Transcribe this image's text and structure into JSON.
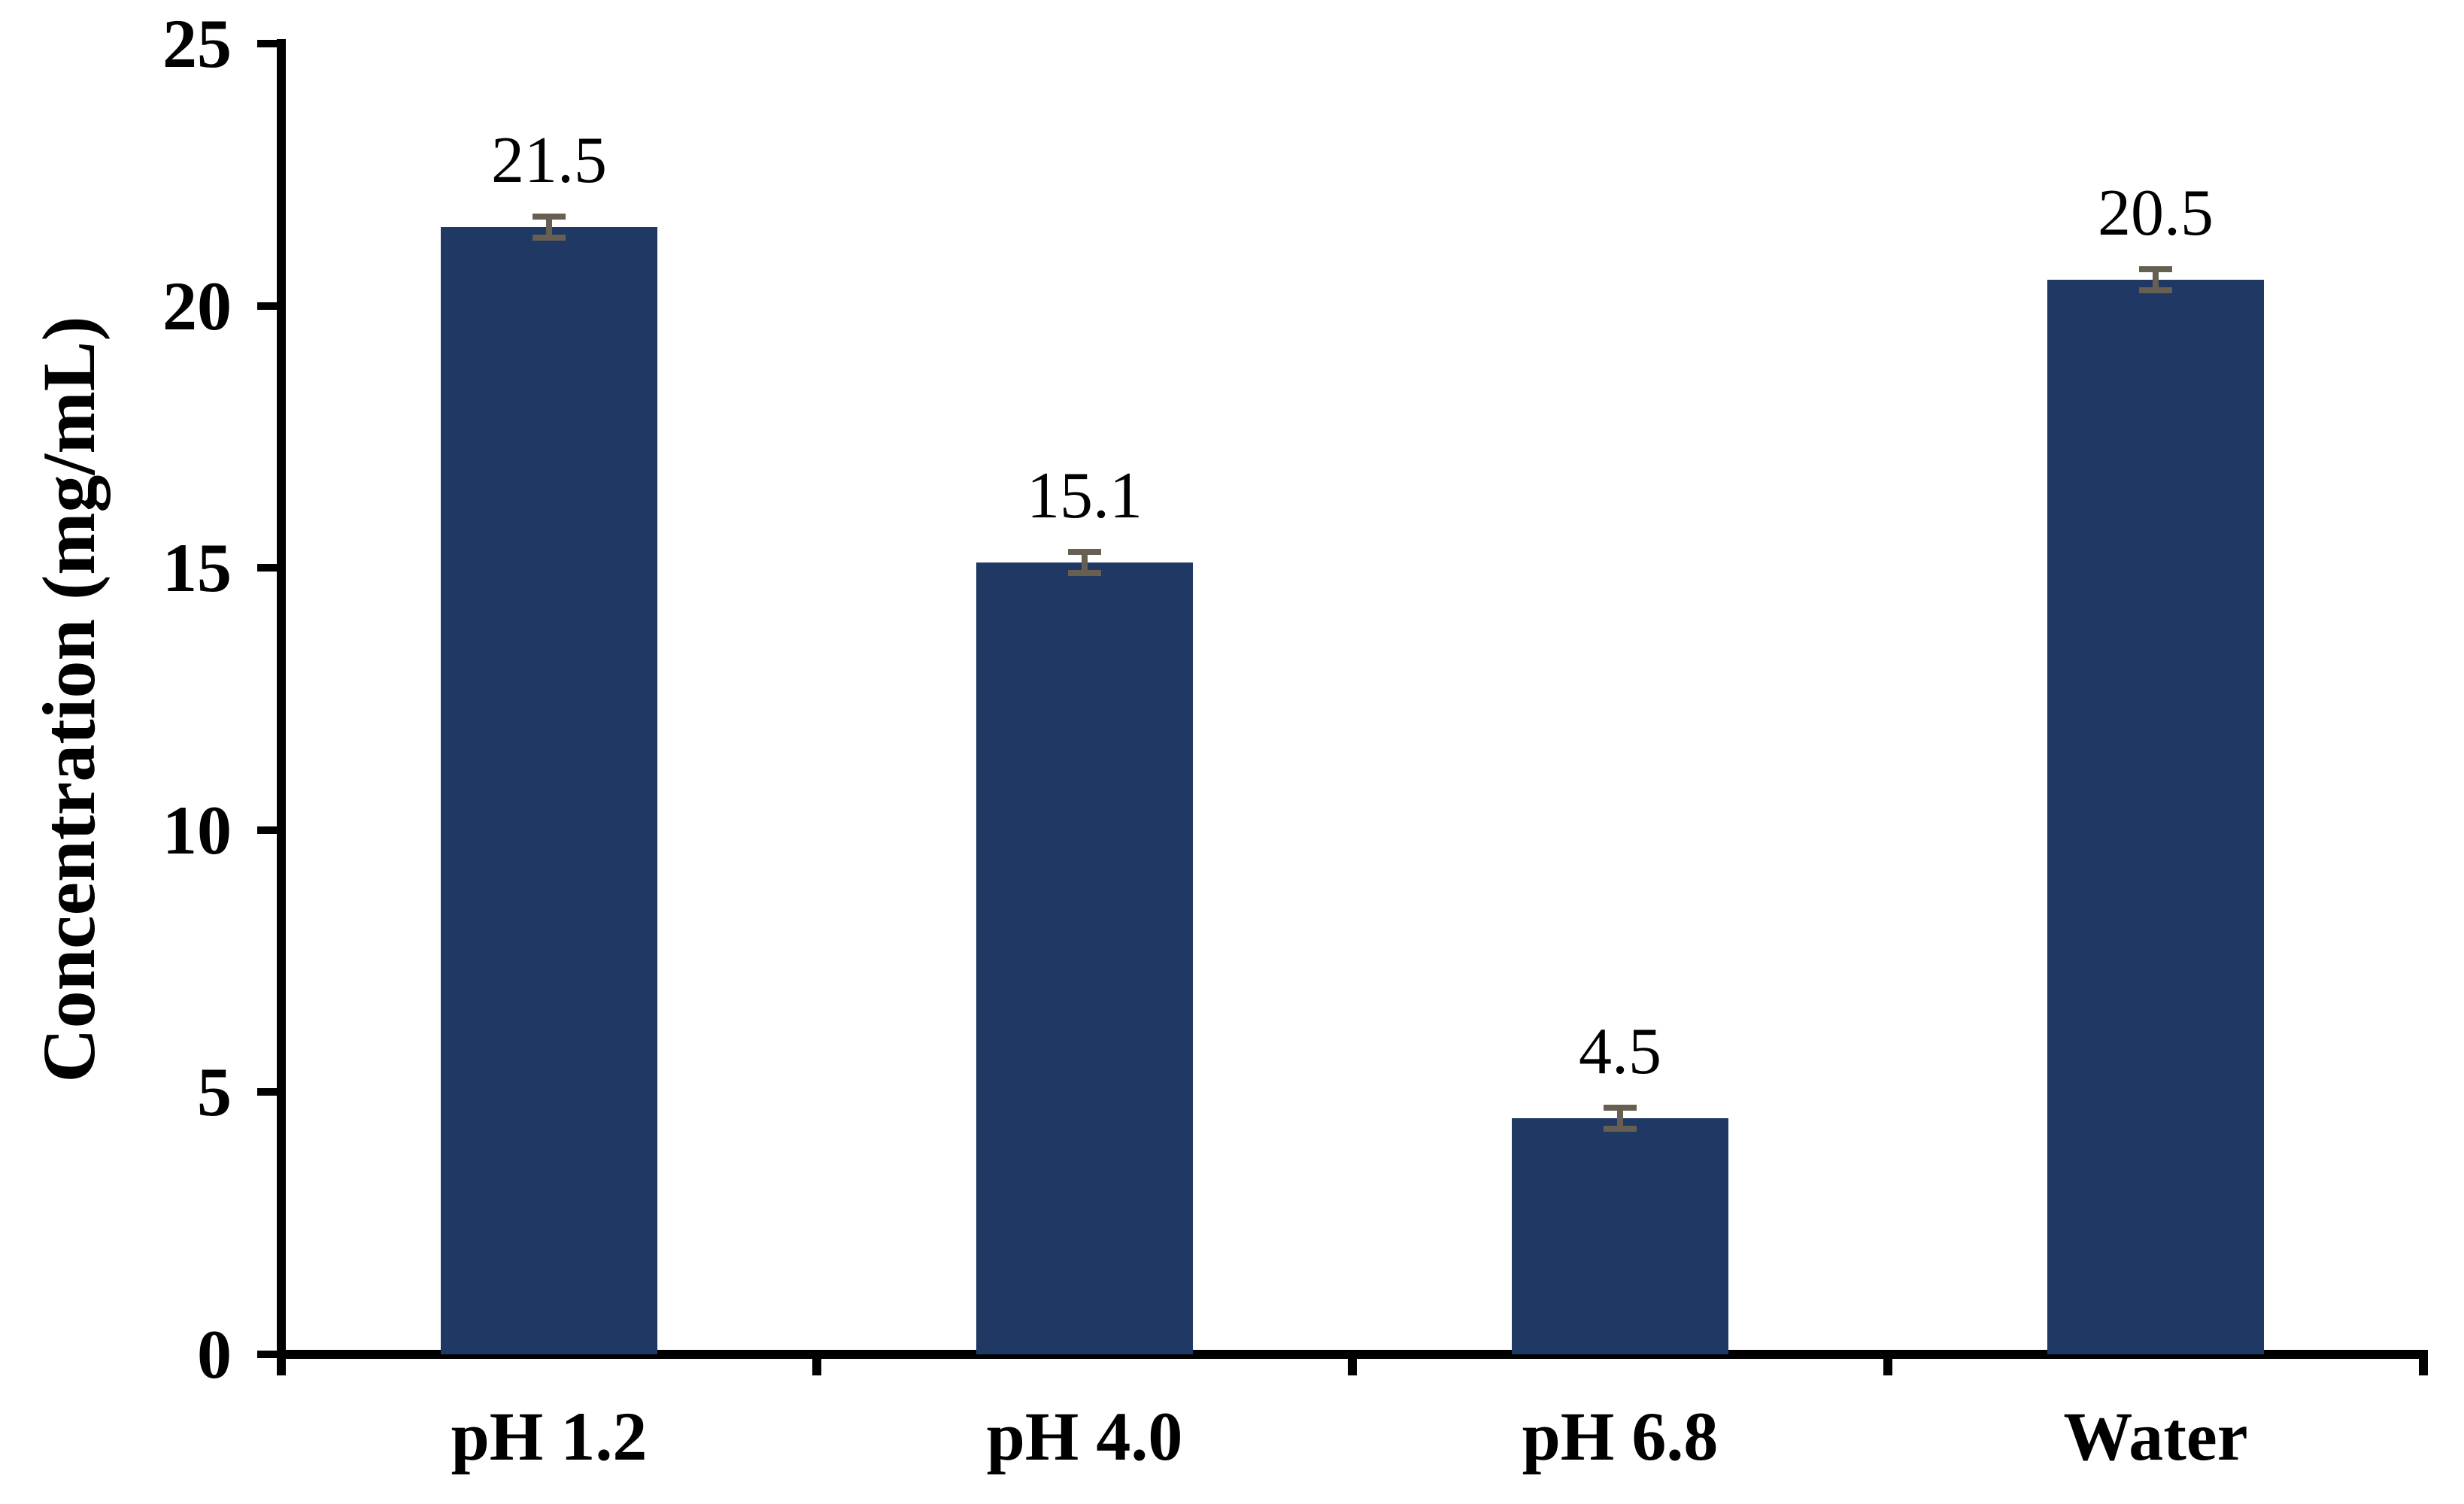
{
  "figure": {
    "background_color": "#ffffff",
    "text_color": "#000000",
    "axis_color": "#000000"
  },
  "chart_data": {
    "type": "bar",
    "title": "",
    "xlabel": "",
    "ylabel": "Concentration (mg/mL)",
    "categories": [
      "pH 1.2",
      "pH 4.0",
      "pH 6.8",
      "Water"
    ],
    "values": [
      21.5,
      15.1,
      4.5,
      20.5
    ],
    "data_labels": [
      "21.5",
      "15.1",
      "4.5",
      "20.5"
    ],
    "errors_approx": [
      0.2,
      0.2,
      0.2,
      0.2
    ],
    "ylim": [
      0,
      25
    ],
    "yticks": [
      0,
      5,
      10,
      15,
      20,
      25
    ],
    "ytick_labels": [
      "0",
      "5",
      "10",
      "15",
      "20",
      "25"
    ],
    "grid": false,
    "legend": "none",
    "bar_color": "#1f3864",
    "error_bar_color": "#665f52"
  }
}
